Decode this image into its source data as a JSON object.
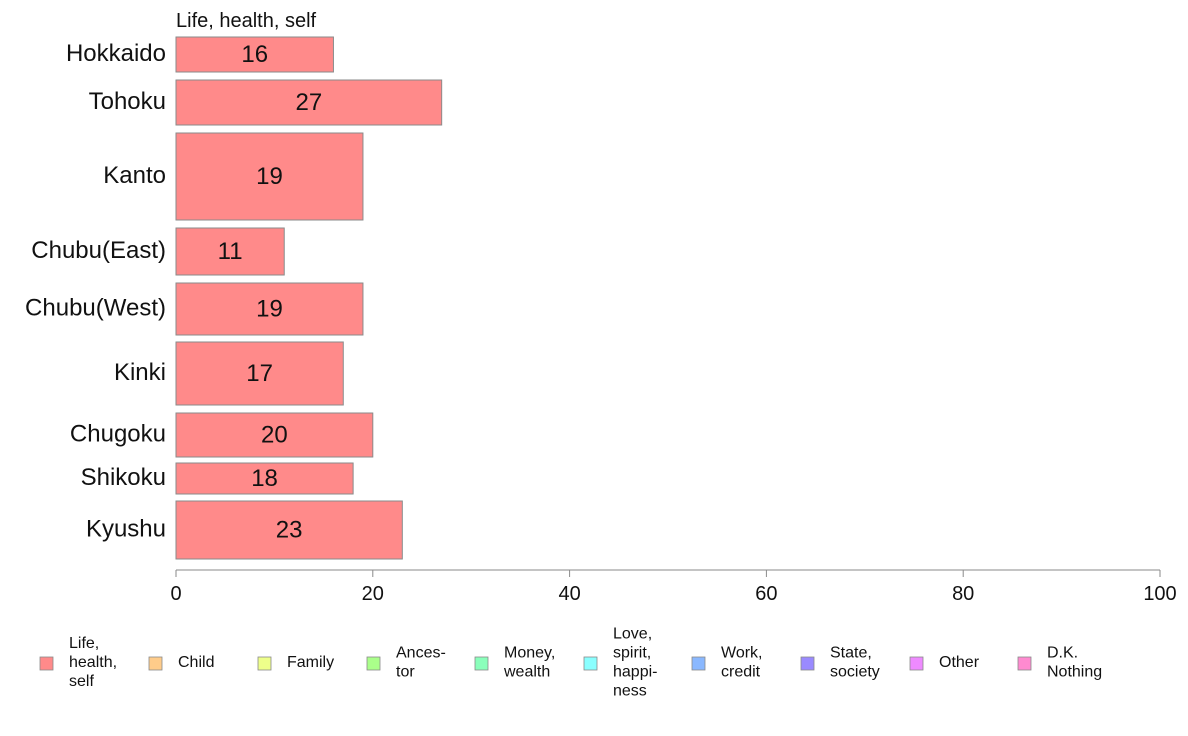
{
  "chart_data": {
    "type": "bar",
    "orientation": "horizontal",
    "series_title": "Life, health, self",
    "categories": [
      "Hokkaido",
      "Tohoku",
      "Kanto",
      "Chubu(East)",
      "Chubu(West)",
      "Kinki",
      "Chugoku",
      "Shikoku",
      "Kyushu"
    ],
    "series": [
      {
        "name": "Life, health, self",
        "color": "#ff8a8a",
        "values": [
          16,
          27,
          19,
          11,
          19,
          17,
          20,
          18,
          23
        ]
      }
    ],
    "xlim": [
      0,
      100
    ],
    "xticks": [
      0,
      20,
      40,
      60,
      80,
      100
    ],
    "grid": false,
    "legend_position": "bottom",
    "legend": [
      {
        "label": [
          "Life,",
          "health,",
          "self"
        ],
        "color": "#ff8a8a"
      },
      {
        "label": [
          "Child"
        ],
        "color": "#ffcc8a"
      },
      {
        "label": [
          "Family"
        ],
        "color": "#eeff8a"
      },
      {
        "label": [
          "Ances-",
          "tor"
        ],
        "color": "#aaff8a"
      },
      {
        "label": [
          "Money,",
          "wealth"
        ],
        "color": "#8affbb"
      },
      {
        "label": [
          "Love,",
          "spirit,",
          "happi-",
          "ness"
        ],
        "color": "#8affff"
      },
      {
        "label": [
          "Work,",
          "credit"
        ],
        "color": "#8ab8ff"
      },
      {
        "label": [
          "State,",
          "society"
        ],
        "color": "#9a8aff"
      },
      {
        "label": [
          "Other"
        ],
        "color": "#ee8aff"
      },
      {
        "label": [
          "D.K.",
          "Nothing"
        ],
        "color": "#ff8ad0"
      }
    ]
  }
}
